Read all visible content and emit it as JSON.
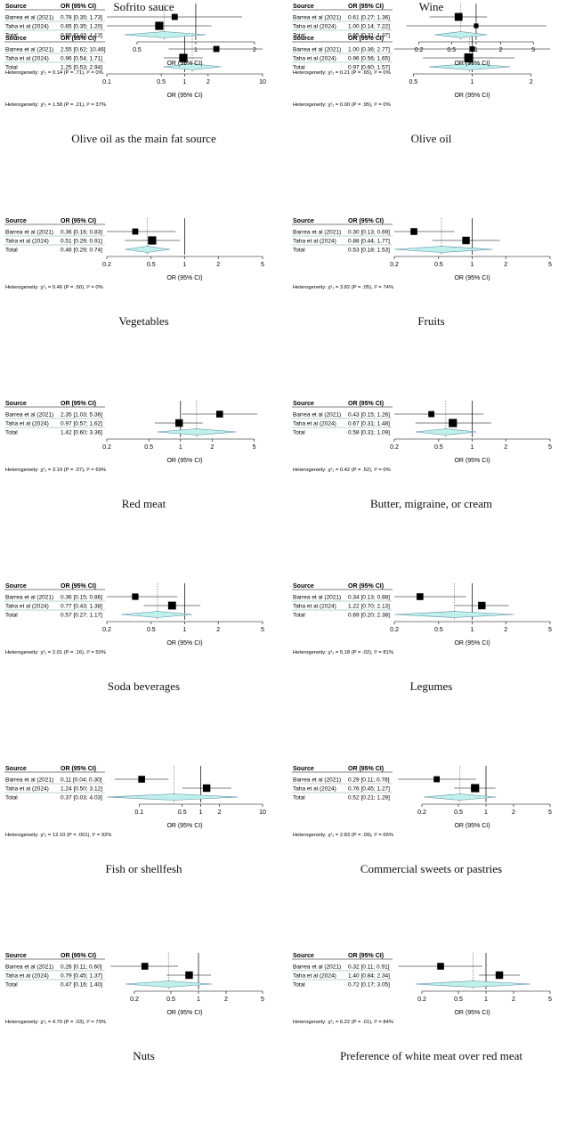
{
  "chart_data": [
    {
      "type": "forest",
      "title": "Olive oil as the main fat source",
      "header": {
        "source": "Source",
        "or": "OR (95% CI)"
      },
      "rows": [
        {
          "source": "Barrea et al (2021)",
          "or": 2.55,
          "lo": 0.62,
          "hi": 10.46,
          "label": "2.55 [0.62; 10.46]",
          "weight": 0.35
        },
        {
          "source": "Taha et al (2024)",
          "or": 0.96,
          "lo": 0.54,
          "hi": 1.71,
          "label": "0.96 [0.54;  1.71]",
          "weight": 0.65
        }
      ],
      "total": {
        "source": "Total",
        "or": 1.25,
        "lo": 0.53,
        "hi": 2.94,
        "label": "1.25 [0.53;  2.94]"
      },
      "ticks": [
        0.1,
        0.5,
        1,
        2,
        10
      ],
      "tick_labels": [
        "0.1",
        "0.5",
        "1",
        "2",
        "10"
      ],
      "xlim": [
        0.1,
        10
      ],
      "xlabel": "OR (95% CI)",
      "heterogeneity": "Heterogeneity: χ²₁ = 1.58 (P = .21), I² = 37%"
    },
    {
      "type": "forest",
      "title": "Olive oil",
      "header": {
        "source": "Source",
        "or": "OR (95% CI)"
      },
      "rows": [
        {
          "source": "Barrea et al (2021)",
          "or": 1.0,
          "lo": 0.36,
          "hi": 2.77,
          "label": "1.00 [0.36; 2.77]",
          "weight": 0.25
        },
        {
          "source": "Taha et al (2024)",
          "or": 0.96,
          "lo": 0.56,
          "hi": 1.65,
          "label": "0.96 [0.56; 1.65]",
          "weight": 0.75
        }
      ],
      "total": {
        "source": "Total",
        "or": 0.97,
        "lo": 0.6,
        "hi": 1.57,
        "label": "0.97 [0.60; 1.57]"
      },
      "ticks": [
        0.5,
        1,
        2
      ],
      "tick_labels": [
        "0.5",
        "1",
        "2"
      ],
      "xlim": [
        0.4,
        2.5
      ],
      "xlabel": "OR (95% CI)",
      "heterogeneity": "Heterogeneity: χ²₁ = 0.00 (P = .95), I² = 0%"
    },
    {
      "type": "forest",
      "title": "Vegetables",
      "header": {
        "source": "Source",
        "or": "OR (95% CI)"
      },
      "rows": [
        {
          "source": "Barrea et al (2021)",
          "or": 0.36,
          "lo": 0.16,
          "hi": 0.83,
          "label": "0.36 [0.16; 0.83]",
          "weight": 0.35
        },
        {
          "source": "Taha et al (2024)",
          "or": 0.51,
          "lo": 0.29,
          "hi": 0.91,
          "label": "0.51 [0.29; 0.91]",
          "weight": 0.65
        }
      ],
      "total": {
        "source": "Total",
        "or": 0.46,
        "lo": 0.29,
        "hi": 0.74,
        "label": "0.46 [0.29; 0.74]"
      },
      "ticks": [
        0.2,
        0.5,
        1,
        2,
        5
      ],
      "tick_labels": [
        "0.2",
        "0.5",
        "1",
        "2",
        "5"
      ],
      "xlim": [
        0.2,
        5
      ],
      "xlabel": "OR (95% CI)",
      "heterogeneity": "Heterogeneity: χ²₁ = 0.46 (P = .50), I² = 0%"
    },
    {
      "type": "forest",
      "title": "Fruits",
      "header": {
        "source": "Source",
        "or": "OR (95% CI)"
      },
      "rows": [
        {
          "source": "Barrea et al (2021)",
          "or": 0.3,
          "lo": 0.13,
          "hi": 0.69,
          "label": "0.30 [0.13; 0.69]",
          "weight": 0.45
        },
        {
          "source": "Taha et al (2024)",
          "or": 0.88,
          "lo": 0.44,
          "hi": 1.77,
          "label": "0.88 [0.44; 1.77]",
          "weight": 0.55
        }
      ],
      "total": {
        "source": "Total",
        "or": 0.53,
        "lo": 0.18,
        "hi": 1.53,
        "label": "0.53 [0.18; 1.53]"
      },
      "ticks": [
        0.2,
        0.5,
        1,
        2,
        5
      ],
      "tick_labels": [
        "0.2",
        "0.5",
        "1",
        "2",
        "5"
      ],
      "xlim": [
        0.2,
        5
      ],
      "xlabel": "OR (95% CI)",
      "heterogeneity": "Heterogeneity: χ²₁ = 3.82 (P = .05), I² = 74%"
    },
    {
      "type": "forest",
      "title": "Red meat",
      "header": {
        "source": "Source",
        "or": "OR (95% CI)"
      },
      "rows": [
        {
          "source": "Barrea et al (2021)",
          "or": 2.35,
          "lo": 1.03,
          "hi": 5.36,
          "label": "2.35 [1.03; 5.36]",
          "weight": 0.45
        },
        {
          "source": "Taha et al (2024)",
          "or": 0.97,
          "lo": 0.57,
          "hi": 1.62,
          "label": "0.97 [0.57; 1.62]",
          "weight": 0.55
        }
      ],
      "total": {
        "source": "Total",
        "or": 1.42,
        "lo": 0.6,
        "hi": 3.36,
        "label": "1.42 [0.60; 3.36]"
      },
      "ticks": [
        0.2,
        0.5,
        1,
        2,
        5
      ],
      "tick_labels": [
        "0.2",
        "0.5",
        "1",
        "2",
        "5"
      ],
      "xlim": [
        0.2,
        6
      ],
      "xlabel": "OR (95% CI)",
      "heterogeneity": "Heterogeneity: χ²₁ = 3.19 (P = .07), I² = 69%"
    },
    {
      "type": "forest",
      "title": "Butter, migraine, or cream",
      "header": {
        "source": "Source",
        "or": "OR (95% CI)"
      },
      "rows": [
        {
          "source": "Barrea et al (2021)",
          "or": 0.43,
          "lo": 0.15,
          "hi": 1.26,
          "label": "0.43 [0.15; 1.26]",
          "weight": 0.35
        },
        {
          "source": "Taha et al (2024)",
          "or": 0.67,
          "lo": 0.31,
          "hi": 1.48,
          "label": "0.67 [0.31; 1.48]",
          "weight": 0.65
        }
      ],
      "total": {
        "source": "Total",
        "or": 0.58,
        "lo": 0.31,
        "hi": 1.09,
        "label": "0.58 [0.31; 1.09]"
      },
      "ticks": [
        0.2,
        0.5,
        1,
        2,
        5
      ],
      "tick_labels": [
        "0.2",
        "0.5",
        "1",
        "2",
        "5"
      ],
      "xlim": [
        0.2,
        5
      ],
      "xlabel": "OR (95% CI)",
      "heterogeneity": "Heterogeneity: χ²₁ = 0.42 (P = .52), I² = 0%"
    },
    {
      "type": "forest",
      "title": "Soda beverages",
      "header": {
        "source": "Source",
        "or": "OR (95% CI)"
      },
      "rows": [
        {
          "source": "Barrea et al (2021)",
          "or": 0.36,
          "lo": 0.15,
          "hi": 0.86,
          "label": "0.36 [0.15; 0.86]",
          "weight": 0.4
        },
        {
          "source": "Taha et al (2024)",
          "or": 0.77,
          "lo": 0.43,
          "hi": 1.38,
          "label": "0.77 [0.43; 1.38]",
          "weight": 0.6
        }
      ],
      "total": {
        "source": "Total",
        "or": 0.57,
        "lo": 0.27,
        "hi": 1.17,
        "label": "0.57 [0.27; 1.17]"
      },
      "ticks": [
        0.2,
        0.5,
        1,
        2,
        5
      ],
      "tick_labels": [
        "0.2",
        "0.5",
        "1",
        "2",
        "5"
      ],
      "xlim": [
        0.2,
        5
      ],
      "xlabel": "OR (95% CI)",
      "heterogeneity": "Heterogeneity: χ²₁ = 2.01 (P = .16), I² = 50%"
    },
    {
      "type": "forest",
      "title": "Legumes",
      "header": {
        "source": "Source",
        "or": "OR (95% CI)"
      },
      "rows": [
        {
          "source": "Barrea et al (2021)",
          "or": 0.34,
          "lo": 0.13,
          "hi": 0.88,
          "label": "0.34 [0.13; 0.88]",
          "weight": 0.45
        },
        {
          "source": "Taha et al (2024)",
          "or": 1.22,
          "lo": 0.7,
          "hi": 2.13,
          "label": "1.22 [0.70; 2.13]",
          "weight": 0.55
        }
      ],
      "total": {
        "source": "Total",
        "or": 0.69,
        "lo": 0.2,
        "hi": 2.38,
        "label": "0.69 [0.20; 2.38]"
      },
      "ticks": [
        0.2,
        0.5,
        1,
        2,
        5
      ],
      "tick_labels": [
        "0.2",
        "0.5",
        "1",
        "2",
        "5"
      ],
      "xlim": [
        0.2,
        5
      ],
      "xlabel": "OR (95% CI)",
      "heterogeneity": "Heterogeneity: χ²₁ = 5.18 (P = .02), I² = 81%"
    },
    {
      "type": "forest",
      "title": "Fish or shellfesh",
      "header": {
        "source": "Source",
        "or": "OR (95% CI)"
      },
      "rows": [
        {
          "source": "Barrea et al (2021)",
          "or": 0.11,
          "lo": 0.04,
          "hi": 0.3,
          "label": "0.11 [0.04; 0.30]",
          "weight": 0.45
        },
        {
          "source": "Taha et al (2024)",
          "or": 1.24,
          "lo": 0.5,
          "hi": 3.12,
          "label": "1.24 [0.50; 3.12]",
          "weight": 0.55
        }
      ],
      "total": {
        "source": "Total",
        "or": 0.37,
        "lo": 0.03,
        "hi": 4.03,
        "label": "0.37 [0.03; 4.03]"
      },
      "ticks": [
        0.1,
        0.5,
        1,
        2,
        10
      ],
      "tick_labels": [
        "0.1",
        "0.5",
        "1",
        "2",
        "10"
      ],
      "xlim": [
        0.03,
        10
      ],
      "xlabel": "OR (95% CI)",
      "heterogeneity": "Heterogeneity: χ²₁ = 12.10 (P = .001), I² = 92%"
    },
    {
      "type": "forest",
      "title": "Commercial sweets or pastries",
      "header": {
        "source": "Source",
        "or": "OR (95% CI)"
      },
      "rows": [
        {
          "source": "Barrea et al (2021)",
          "or": 0.29,
          "lo": 0.11,
          "hi": 0.78,
          "label": "0.29 [0.11; 0.78]",
          "weight": 0.35
        },
        {
          "source": "Taha et al (2024)",
          "or": 0.76,
          "lo": 0.45,
          "hi": 1.27,
          "label": "0.76 [0.45; 1.27]",
          "weight": 0.65
        }
      ],
      "total": {
        "source": "Total",
        "or": 0.52,
        "lo": 0.21,
        "hi": 1.29,
        "label": "0.52 [0.21; 1.29]"
      },
      "ticks": [
        0.2,
        0.5,
        1,
        2,
        5
      ],
      "tick_labels": [
        "0.2",
        "0.5",
        "1",
        "2",
        "5"
      ],
      "xlim": [
        0.1,
        5
      ],
      "xlabel": "OR (95% CI)",
      "heterogeneity": "Heterogeneity: χ²₁ = 2.83 (P = .09), I² = 65%"
    },
    {
      "type": "forest",
      "title": "Nuts",
      "header": {
        "source": "Source",
        "or": "OR (95% CI)"
      },
      "rows": [
        {
          "source": "Barrea et al (2021)",
          "or": 0.26,
          "lo": 0.11,
          "hi": 0.6,
          "label": "0.26 [0.11; 0.60]",
          "weight": 0.45
        },
        {
          "source": "Taha et al (2024)",
          "or": 0.79,
          "lo": 0.45,
          "hi": 1.37,
          "label": "0.79 [0.45; 1.37]",
          "weight": 0.55
        }
      ],
      "total": {
        "source": "Total",
        "or": 0.47,
        "lo": 0.16,
        "hi": 1.4,
        "label": "0.47 [0.16; 1.40]"
      },
      "ticks": [
        0.2,
        0.5,
        1,
        2,
        5
      ],
      "tick_labels": [
        "0.2",
        "0.5",
        "1",
        "2",
        "5"
      ],
      "xlim": [
        0.1,
        5
      ],
      "xlabel": "OR (95% CI)",
      "heterogeneity": "Heterogeneity: χ²₁ = 4.70 (P = .03), I² = 79%"
    },
    {
      "type": "forest",
      "title": "Preference of white meat over red meat",
      "header": {
        "source": "Source",
        "or": "OR (95% CI)"
      },
      "rows": [
        {
          "source": "Barrea et al (2021)",
          "or": 0.32,
          "lo": 0.11,
          "hi": 0.91,
          "label": "0.32 [0.11; 0.91]",
          "weight": 0.45
        },
        {
          "source": "Taha et al (2024)",
          "or": 1.4,
          "lo": 0.84,
          "hi": 2.34,
          "label": "1.40 [0.84; 2.34]",
          "weight": 0.55
        }
      ],
      "total": {
        "source": "Total",
        "or": 0.72,
        "lo": 0.17,
        "hi": 3.05,
        "label": "0.72 [0.17; 3.05]"
      },
      "ticks": [
        0.2,
        0.5,
        1,
        2,
        5
      ],
      "tick_labels": [
        "0.2",
        "0.5",
        "1",
        "2",
        "5"
      ],
      "xlim": [
        0.1,
        5
      ],
      "xlabel": "OR (95% CI)",
      "heterogeneity": "Heterogeneity: χ²₁ = 6.22 (P = .01), I² = 84%"
    },
    {
      "type": "forest",
      "title": "Sofrito sauce",
      "header": {
        "source": "Source",
        "or": "OR (95% CI)"
      },
      "rows": [
        {
          "source": "Barrea et al (2021)",
          "or": 0.78,
          "lo": 0.35,
          "hi": 1.73,
          "label": "0.78 [0.35; 1.73]",
          "weight": 0.35
        },
        {
          "source": "Taha et al (2024)",
          "or": 0.65,
          "lo": 0.35,
          "hi": 1.2,
          "label": "0.65 [0.35; 1.20]",
          "weight": 0.65
        }
      ],
      "total": {
        "source": "Total",
        "or": 0.69,
        "lo": 0.43,
        "hi": 1.13,
        "label": "0.69 [0.43; 1.13]"
      },
      "ticks": [
        0.5,
        1,
        2
      ],
      "tick_labels": [
        "0.5",
        "1",
        "2"
      ],
      "xlim": [
        0.35,
        2.2
      ],
      "xlabel": "OR (95% CI)",
      "heterogeneity": "Heterogeneity: χ²₁ = 0.14 (P = .71), I² = 0%"
    },
    {
      "type": "forest",
      "title": "Wine",
      "header": {
        "source": "Source",
        "or": "OR (95% CI)"
      },
      "rows": [
        {
          "source": "Barrea et al (2021)",
          "or": 0.61,
          "lo": 0.27,
          "hi": 1.36,
          "label": "0.61 [0.27; 1.36]",
          "weight": 0.6
        },
        {
          "source": "Taha et al (2024)",
          "or": 1.0,
          "lo": 0.14,
          "hi": 7.22,
          "label": "1.00 [0.14; 7.22]",
          "weight": 0.15
        }
      ],
      "total": {
        "source": "Total",
        "or": 0.65,
        "lo": 0.31,
        "hi": 1.37,
        "label": "0.65 [0.31; 1.37]"
      },
      "ticks": [
        0.2,
        0.5,
        1,
        2,
        5
      ],
      "tick_labels": [
        "0.2",
        "0.5",
        "1",
        "2",
        "5"
      ],
      "xlim": [
        0.1,
        8
      ],
      "xlabel": "OR (95% CI)",
      "heterogeneity": "Heterogeneity: χ²₁ = 0.21 (P = .65), I² = 0%"
    }
  ]
}
